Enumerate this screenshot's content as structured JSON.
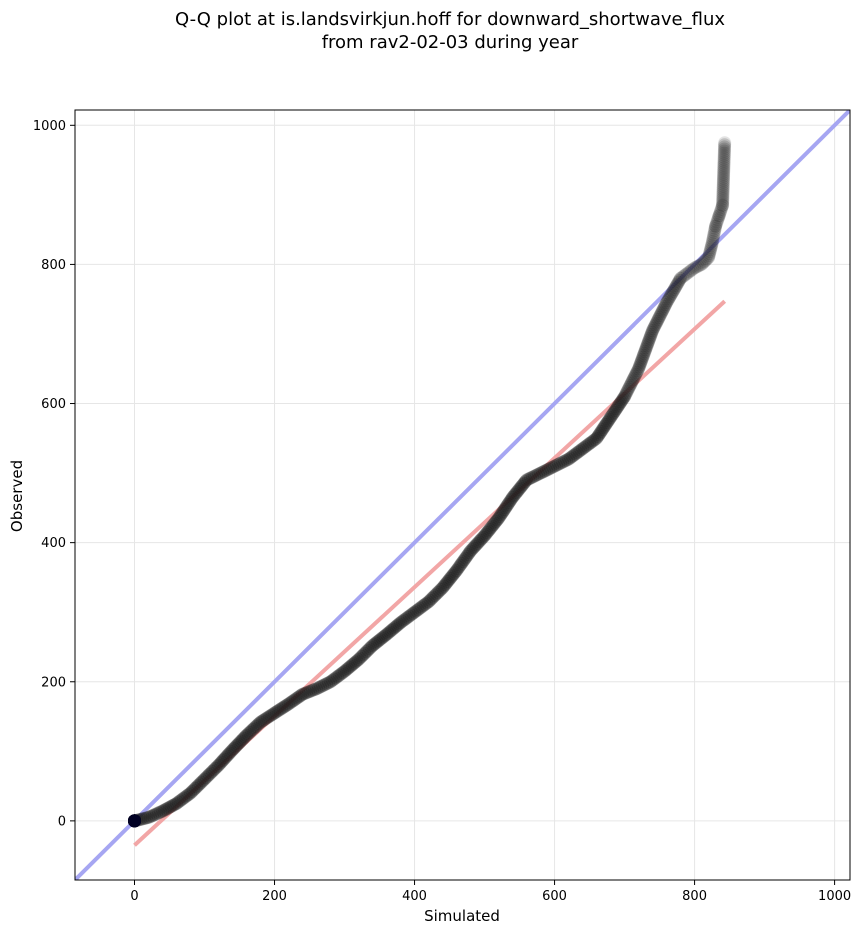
{
  "chart_data": {
    "type": "scatter",
    "title_line1": "Q-Q plot at is.landsvirkjun.hoff for downward_shortwave_flux",
    "title_line2": "from rav2-02-03 during year",
    "xlabel": "Simulated",
    "ylabel": "Observed",
    "xlim": [
      -85,
      1022
    ],
    "ylim": [
      -85,
      1022
    ],
    "xticks": [
      0,
      200,
      400,
      600,
      800,
      1000
    ],
    "yticks": [
      0,
      200,
      400,
      600,
      800,
      1000
    ],
    "xtick_labels": [
      "0",
      "200",
      "400",
      "600",
      "800",
      "1000"
    ],
    "ytick_labels": [
      "0",
      "200",
      "400",
      "600",
      "800",
      "1000"
    ],
    "grid": true,
    "colors": {
      "points": "#1a1a1a",
      "identity_line": "#a6a6f2",
      "fit_line": "#f2a6a6"
    },
    "identity_line": {
      "slope": 1,
      "intercept": 0
    },
    "fit_line": {
      "x": [
        0,
        843
      ],
      "y": [
        -35,
        747
      ]
    },
    "qq_curve": {
      "x": [
        0,
        20,
        40,
        60,
        80,
        100,
        120,
        140,
        160,
        180,
        200,
        220,
        240,
        260,
        280,
        300,
        320,
        340,
        360,
        380,
        400,
        420,
        440,
        460,
        480,
        500,
        520,
        540,
        560,
        580,
        600,
        620,
        640,
        660,
        680,
        700,
        720,
        740,
        760,
        780,
        800,
        810,
        820,
        825,
        830,
        835,
        840,
        843
      ],
      "y": [
        0,
        5,
        14,
        25,
        40,
        60,
        80,
        102,
        123,
        142,
        155,
        168,
        182,
        190,
        200,
        215,
        232,
        252,
        268,
        285,
        300,
        315,
        335,
        360,
        388,
        410,
        435,
        465,
        490,
        500,
        510,
        520,
        535,
        550,
        580,
        610,
        650,
        705,
        745,
        780,
        795,
        800,
        810,
        830,
        855,
        870,
        885,
        975
      ]
    },
    "outlier_points": [
      {
        "x": 843,
        "y": 975
      },
      {
        "x": 840,
        "y": 885
      },
      {
        "x": 835,
        "y": 870
      },
      {
        "x": 830,
        "y": 855
      }
    ]
  }
}
